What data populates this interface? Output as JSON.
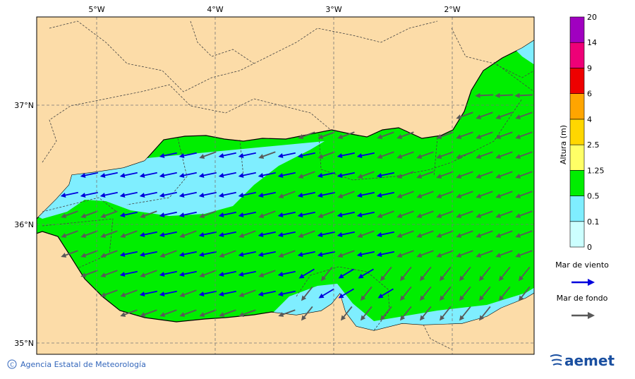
{
  "map": {
    "lon_labels": [
      "5°W",
      "4°W",
      "3°W",
      "2°W"
    ],
    "lat_labels": [
      "37°N",
      "36°N",
      "35°N"
    ]
  },
  "colorbar": {
    "title": "Altura (m)",
    "levels": [
      0,
      0.1,
      0.5,
      1.25,
      2.5,
      4,
      6,
      9,
      14,
      20
    ],
    "colors": [
      "#ccffff",
      "#7feeff",
      "#00ee00",
      "#ffff66",
      "#ffd700",
      "#ffa500",
      "#ee0000",
      "#ee0077",
      "#a000c0"
    ]
  },
  "legend": {
    "items": [
      {
        "label": "Mar de viento",
        "color": "#0000dd"
      },
      {
        "label": "Mar de fondo",
        "color": "#595959"
      }
    ]
  },
  "footer": {
    "credit": "Agencia Estatal de Meteorología",
    "logo": "aemet"
  }
}
